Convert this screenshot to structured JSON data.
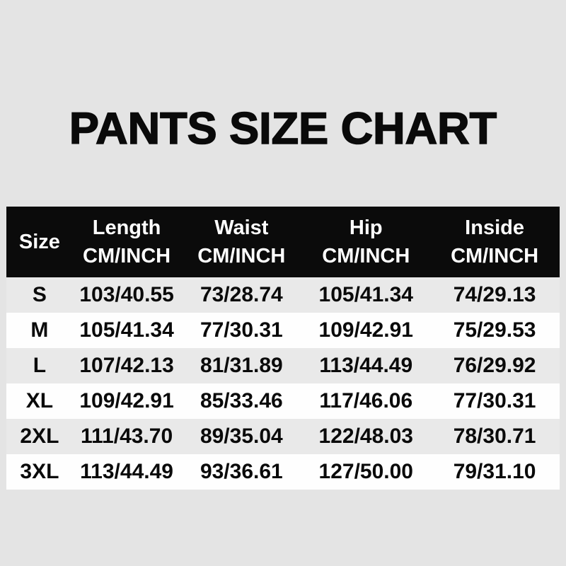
{
  "theme": {
    "page_bg": "#e4e4e4",
    "ink": "#0a0a0a",
    "header_bg": "#0b0b0b",
    "header_fg": "#ffffff",
    "row_bg": "#fefefe",
    "row_alt_bg": "#e9e9e9"
  },
  "chart_data": {
    "type": "table",
    "title": "PANTS SIZE CHART",
    "columns": [
      {
        "label": "Size",
        "unit": ""
      },
      {
        "label": "Length",
        "unit": "CM/INCH"
      },
      {
        "label": "Waist",
        "unit": "CM/INCH"
      },
      {
        "label": "Hip",
        "unit": "CM/INCH"
      },
      {
        "label": "Inside",
        "unit": "CM/INCH"
      }
    ],
    "rows": [
      {
        "size": "S",
        "length": "103/40.55",
        "waist": "73/28.74",
        "hip": "105/41.34",
        "inside": "74/29.13"
      },
      {
        "size": "M",
        "length": "105/41.34",
        "waist": "77/30.31",
        "hip": "109/42.91",
        "inside": "75/29.53"
      },
      {
        "size": "L",
        "length": "107/42.13",
        "waist": "81/31.89",
        "hip": "113/44.49",
        "inside": "76/29.92"
      },
      {
        "size": "XL",
        "length": "109/42.91",
        "waist": "85/33.46",
        "hip": "117/46.06",
        "inside": "77/30.31"
      },
      {
        "size": "2XL",
        "length": "111/43.70",
        "waist": "89/35.04",
        "hip": "122/48.03",
        "inside": "78/30.71"
      },
      {
        "size": "3XL",
        "length": "113/44.49",
        "waist": "93/36.61",
        "hip": "127/50.00",
        "inside": "79/31.10"
      }
    ]
  }
}
